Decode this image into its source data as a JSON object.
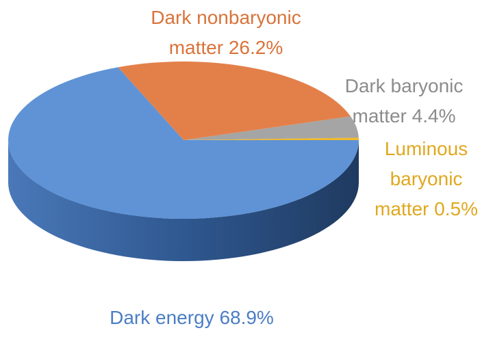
{
  "chart_data": {
    "type": "pie",
    "categories": [
      "Luminous baryonic matter",
      "Dark baryonic matter",
      "Dark nonbaryonic matter",
      "Dark energy"
    ],
    "values": [
      0.5,
      4.4,
      26.2,
      68.9
    ],
    "value_labels": [
      "0.5%",
      "4.4%",
      "26.2%",
      "68.9%"
    ],
    "colors": [
      "#f2b92a",
      "#a5a5a5",
      "#e3804a",
      "#5f93d6"
    ]
  }
}
